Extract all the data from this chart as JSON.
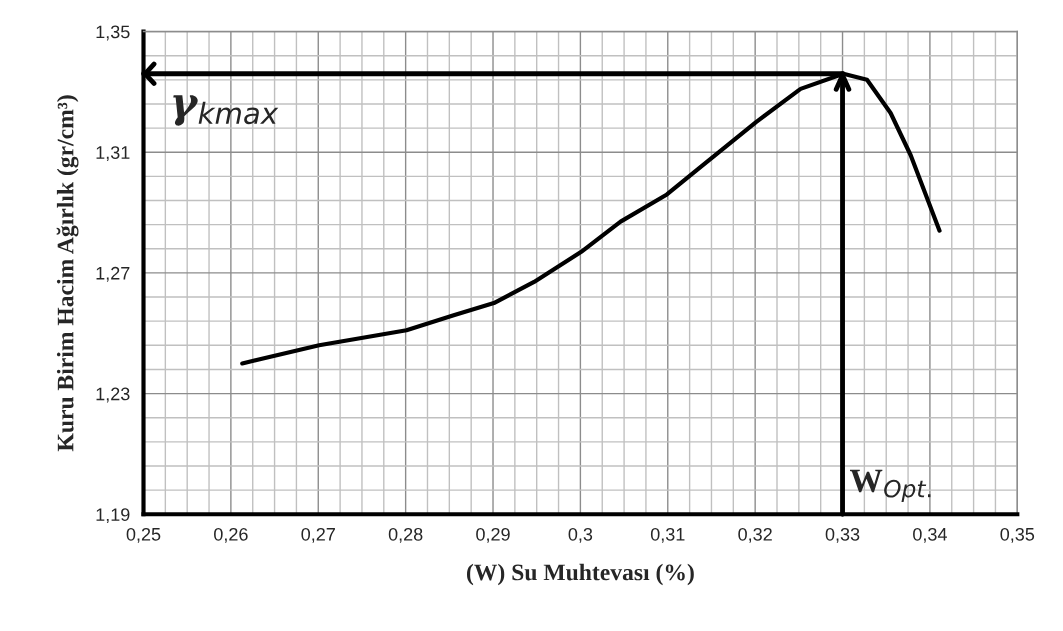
{
  "chart_data": {
    "type": "line",
    "xlabel": "(W) Su Muhtevası (%)",
    "ylabel": "Kuru Birim Hacim Ağırlık (gr/cm³)",
    "x": [
      0.2613,
      0.2701,
      0.2801,
      0.2855,
      0.2901,
      0.2947,
      0.3001,
      0.3046,
      0.3099,
      0.3137,
      0.3201,
      0.3252,
      0.3301,
      0.3328,
      0.3355,
      0.3378,
      0.3411
    ],
    "series": [
      {
        "color": "#000000",
        "values": [
          1.24,
          1.246,
          1.251,
          1.256,
          1.26,
          1.267,
          1.277,
          1.287,
          1.296,
          1.305,
          1.32,
          1.331,
          1.336,
          1.334,
          1.323,
          1.309,
          1.284
        ]
      }
    ],
    "xlim": [
      0.25,
      0.35
    ],
    "ylim": [
      1.19,
      1.35
    ],
    "xticks": [
      {
        "value": 0.25,
        "label": "0,25"
      },
      {
        "value": 0.26,
        "label": "0,26"
      },
      {
        "value": 0.27,
        "label": "0,27"
      },
      {
        "value": 0.28,
        "label": "0,28"
      },
      {
        "value": 0.29,
        "label": "0,29"
      },
      {
        "value": 0.3,
        "label": "0,3"
      },
      {
        "value": 0.31,
        "label": "0,31"
      },
      {
        "value": 0.32,
        "label": "0,32"
      },
      {
        "value": 0.33,
        "label": "0,33"
      },
      {
        "value": 0.34,
        "label": "0,34"
      },
      {
        "value": 0.35,
        "label": "0,35"
      }
    ],
    "yticks": [
      {
        "value": 1.19,
        "label": "1,19"
      },
      {
        "value": 1.23,
        "label": "1,23"
      },
      {
        "value": 1.27,
        "label": "1,27"
      },
      {
        "value": 1.31,
        "label": "1,31"
      },
      {
        "value": 1.35,
        "label": "1,35"
      }
    ],
    "grid": true,
    "marker": "none",
    "line_style": "solid",
    "ref_lines": [
      {
        "axis": "y",
        "value": 1.336,
        "label": "γ$_{kmax}$"
      },
      {
        "axis": "x",
        "value": 0.33,
        "label": "W$_{Opt.}$"
      }
    ]
  }
}
